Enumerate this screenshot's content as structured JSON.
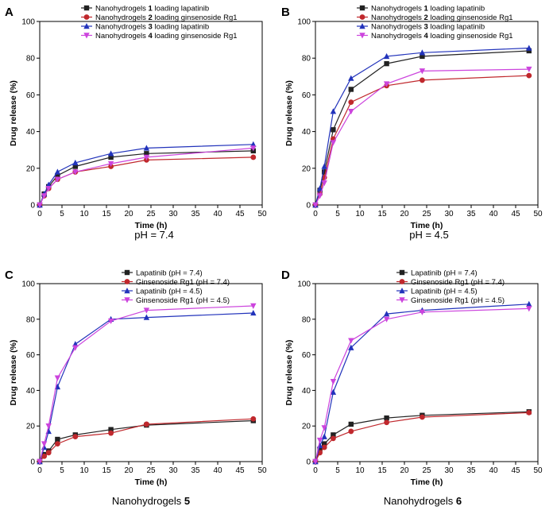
{
  "figure": {
    "background": "#ffffff",
    "series_styles": [
      {
        "color": "#222222",
        "marker": "square"
      },
      {
        "color": "#c0282d",
        "marker": "circle"
      },
      {
        "color": "#2233bb",
        "marker": "triangle-up"
      },
      {
        "color": "#cc44dd",
        "marker": "triangle-down"
      }
    ]
  },
  "chart_data": [
    {
      "panel": "A",
      "type": "line",
      "caption": "pH = 7.4",
      "xlabel": "Time (h)",
      "ylabel": "Drug release (%)",
      "xlim": [
        0,
        50
      ],
      "ylim": [
        0,
        100
      ],
      "xticks": [
        "0",
        "5",
        "10",
        "15",
        "20",
        "25",
        "30",
        "35",
        "40",
        "45",
        "50"
      ],
      "yticks": [
        "0",
        "20",
        "40",
        "60",
        "80",
        "100"
      ],
      "grid": false,
      "legend_position": "top-center",
      "series": [
        {
          "name": "Nanohydrogels 1 loading lapatinib",
          "x": [
            0,
            1,
            2,
            4,
            8,
            16,
            24,
            48
          ],
          "y": [
            0,
            6,
            10,
            16,
            21,
            26,
            28,
            29.5
          ]
        },
        {
          "name": "Nanohydrogels 2 loading ginsenoside Rg1",
          "x": [
            0,
            1,
            2,
            4,
            8,
            16,
            24,
            48
          ],
          "y": [
            0,
            5,
            9,
            14,
            18,
            21,
            24.5,
            26
          ]
        },
        {
          "name": "Nanohydrogels 3 loading lapatinib",
          "x": [
            0,
            1,
            2,
            4,
            8,
            16,
            24,
            48
          ],
          "y": [
            0,
            6,
            11,
            18,
            23,
            28,
            31,
            33
          ]
        },
        {
          "name": "Nanohydrogels 4 loading ginsenoside Rg1",
          "x": [
            0,
            1,
            2,
            4,
            8,
            16,
            24,
            48
          ],
          "y": [
            0,
            5,
            9,
            14,
            18,
            22.5,
            26,
            31
          ]
        }
      ]
    },
    {
      "panel": "B",
      "type": "line",
      "caption": "pH = 4.5",
      "xlabel": "Time (h)",
      "ylabel": "Drug release (%)",
      "xlim": [
        0,
        50
      ],
      "ylim": [
        0,
        100
      ],
      "xticks": [
        "0",
        "5",
        "10",
        "15",
        "20",
        "25",
        "30",
        "35",
        "40",
        "45",
        "50"
      ],
      "yticks": [
        "0",
        "20",
        "40",
        "60",
        "80",
        "100"
      ],
      "grid": false,
      "legend_position": "top-center",
      "series": [
        {
          "name": "Nanohydrogels 1 loading lapatinib",
          "x": [
            0,
            1,
            2,
            4,
            8,
            16,
            24,
            48
          ],
          "y": [
            0,
            8,
            18,
            41,
            63,
            77,
            81,
            84
          ]
        },
        {
          "name": "Nanohydrogels 2 loading ginsenoside Rg1",
          "x": [
            0,
            1,
            2,
            4,
            8,
            16,
            24,
            48
          ],
          "y": [
            0,
            6,
            15,
            36,
            56,
            65,
            68,
            70.5
          ]
        },
        {
          "name": "Nanohydrogels 3 loading lapatinib",
          "x": [
            0,
            1,
            2,
            4,
            8,
            16,
            24,
            48
          ],
          "y": [
            0,
            9,
            21,
            51,
            69,
            81,
            83,
            85.5
          ]
        },
        {
          "name": "Nanohydrogels 4 loading ginsenoside Rg1",
          "x": [
            0,
            1,
            2,
            4,
            8,
            16,
            24,
            48
          ],
          "y": [
            0,
            5,
            12,
            34,
            51,
            66,
            73,
            74
          ]
        }
      ]
    },
    {
      "panel": "C",
      "type": "line",
      "caption": "Nanohydrogels 5",
      "xlabel": "Time (h)",
      "ylabel": "Drug release (%)",
      "xlim": [
        0,
        50
      ],
      "ylim": [
        0,
        100
      ],
      "xticks": [
        "0",
        "5",
        "10",
        "15",
        "20",
        "25",
        "30",
        "35",
        "40",
        "45",
        "50"
      ],
      "yticks": [
        "0",
        "20",
        "40",
        "60",
        "80",
        "100"
      ],
      "grid": false,
      "legend_position": "top-center",
      "series": [
        {
          "name": "Lapatinib (pH = 7.4)",
          "x": [
            0,
            1,
            2,
            4,
            8,
            16,
            24,
            48
          ],
          "y": [
            0,
            4,
            6,
            12.5,
            15,
            18,
            20.5,
            23
          ]
        },
        {
          "name": "Ginsenoside Rg1 (pH = 7.4)",
          "x": [
            0,
            1,
            2,
            4,
            8,
            16,
            24,
            48
          ],
          "y": [
            0,
            3,
            5,
            10,
            14,
            16,
            21,
            24
          ]
        },
        {
          "name": "Lapatinib (pH = 4.5)",
          "x": [
            0,
            1,
            2,
            4,
            8,
            16,
            24,
            48
          ],
          "y": [
            0,
            8,
            17,
            42,
            66,
            80,
            81,
            83.5
          ]
        },
        {
          "name": "Ginsenoside Rg1 (pH = 4.5)",
          "x": [
            0,
            1,
            2,
            4,
            8,
            16,
            24,
            48
          ],
          "y": [
            0,
            10,
            20,
            47,
            64,
            79,
            85,
            87.5
          ]
        }
      ]
    },
    {
      "panel": "D",
      "type": "line",
      "caption": "Nanohydrogels 6",
      "xlabel": "Time (h)",
      "ylabel": "Drug release (%)",
      "xlim": [
        0,
        50
      ],
      "ylim": [
        0,
        100
      ],
      "xticks": [
        "0",
        "5",
        "10",
        "15",
        "20",
        "25",
        "30",
        "35",
        "40",
        "45",
        "50"
      ],
      "yticks": [
        "0",
        "20",
        "40",
        "60",
        "80",
        "100"
      ],
      "grid": false,
      "legend_position": "top-center",
      "series": [
        {
          "name": "Lapatinib (pH = 7.4)",
          "x": [
            0,
            1,
            2,
            4,
            8,
            16,
            24,
            48
          ],
          "y": [
            0,
            7,
            10,
            15,
            21,
            24.5,
            26,
            28
          ]
        },
        {
          "name": "Ginsenoside Rg1 (pH = 7.4)",
          "x": [
            0,
            1,
            2,
            4,
            8,
            16,
            24,
            48
          ],
          "y": [
            0,
            5,
            8,
            13,
            17,
            22,
            25,
            27.5
          ]
        },
        {
          "name": "Lapatinib (pH = 4.5)",
          "x": [
            0,
            1,
            2,
            4,
            8,
            16,
            24,
            48
          ],
          "y": [
            0,
            9,
            14,
            39,
            64,
            83,
            85,
            88.5
          ]
        },
        {
          "name": "Ginsenoside Rg1 (pH = 4.5)",
          "x": [
            0,
            1,
            2,
            4,
            8,
            16,
            24,
            48
          ],
          "y": [
            0,
            12,
            19,
            45,
            68,
            80,
            84,
            86
          ]
        }
      ]
    }
  ]
}
